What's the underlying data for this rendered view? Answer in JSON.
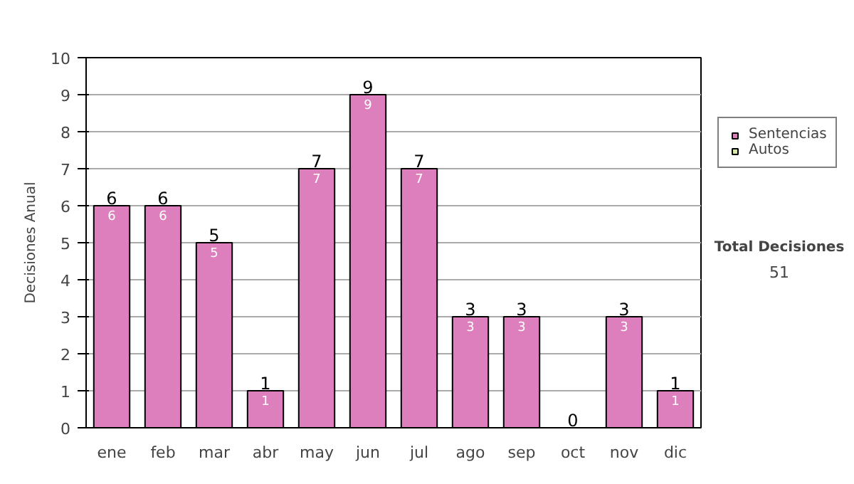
{
  "chart_data": {
    "type": "bar",
    "ylabel": "Decisiones Anual",
    "categories": [
      "ene",
      "feb",
      "mar",
      "abr",
      "may",
      "jun",
      "jul",
      "ago",
      "sep",
      "oct",
      "nov",
      "dic"
    ],
    "stacked": true,
    "series": [
      {
        "name": "Sentencias",
        "color": "#dd7fbc",
        "values": [
          6,
          6,
          5,
          1,
          7,
          9,
          7,
          3,
          3,
          0,
          3,
          1
        ],
        "value_labels": [
          "6",
          "6",
          "5",
          "1",
          "7",
          "9",
          "7",
          "3",
          "3",
          null,
          "3",
          "1"
        ]
      },
      {
        "name": "Autos",
        "color": "#d6e8a8",
        "values": [
          0,
          0,
          0,
          0,
          0,
          0,
          0,
          0,
          0,
          0,
          0,
          0
        ]
      }
    ],
    "totals": [
      "6",
      "6",
      "5",
      "1",
      "7",
      "9",
      "7",
      "3",
      "3",
      "0",
      "3",
      "1"
    ],
    "ylim": [
      0,
      10
    ],
    "yticks": [
      0,
      1,
      2,
      3,
      4,
      5,
      6,
      7,
      8,
      9,
      10
    ],
    "grid": "y",
    "legend": "right",
    "annotations": [
      "Total Decisiones",
      "51"
    ]
  }
}
